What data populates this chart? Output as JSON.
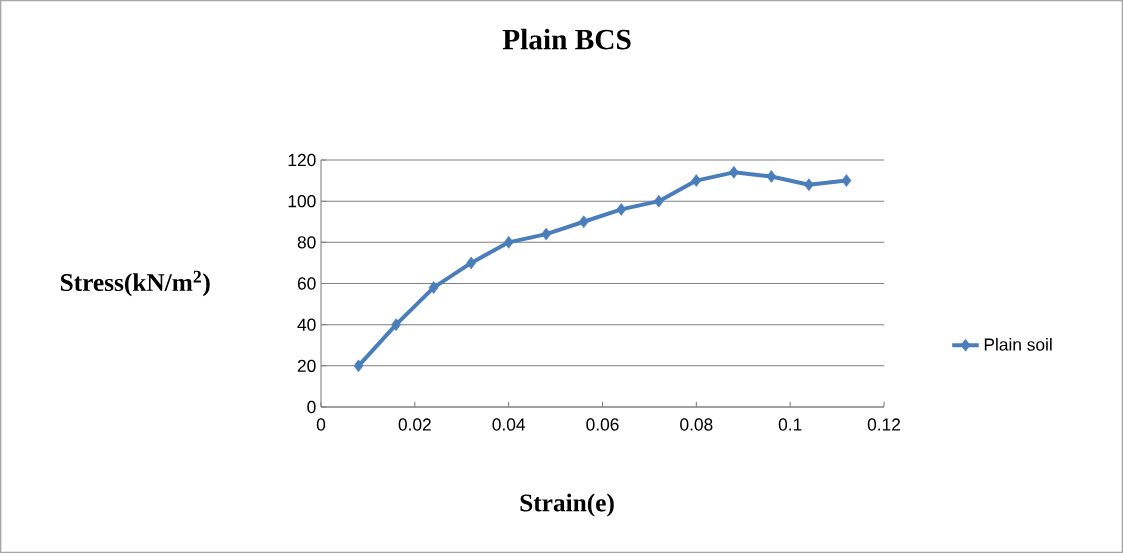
{
  "chart_data": {
    "type": "line",
    "title": "Plain BCS",
    "xlabel": "Strain(e)",
    "ylabel": "Stress(kN/m$^{2}$)",
    "x": [
      0.008,
      0.016,
      0.024,
      0.032,
      0.04,
      0.048,
      0.056,
      0.064,
      0.072,
      0.08,
      0.088,
      0.096,
      0.104,
      0.112
    ],
    "series": [
      {
        "name": "Plain soil",
        "color": "#4a7ebb",
        "values": [
          20,
          40,
          58,
          70,
          80,
          84,
          90,
          96,
          100,
          110,
          114,
          112,
          108,
          110
        ]
      }
    ],
    "xlim": [
      0,
      0.12
    ],
    "xticks": [
      0,
      0.02,
      0.04,
      0.06,
      0.08,
      0.1,
      0.12
    ],
    "ylim": [
      0,
      120
    ],
    "yticks": [
      0,
      20,
      40,
      60,
      80,
      100,
      120
    ],
    "grid": "y",
    "legend": "right",
    "marker": "diamond",
    "line_style": "solid"
  }
}
